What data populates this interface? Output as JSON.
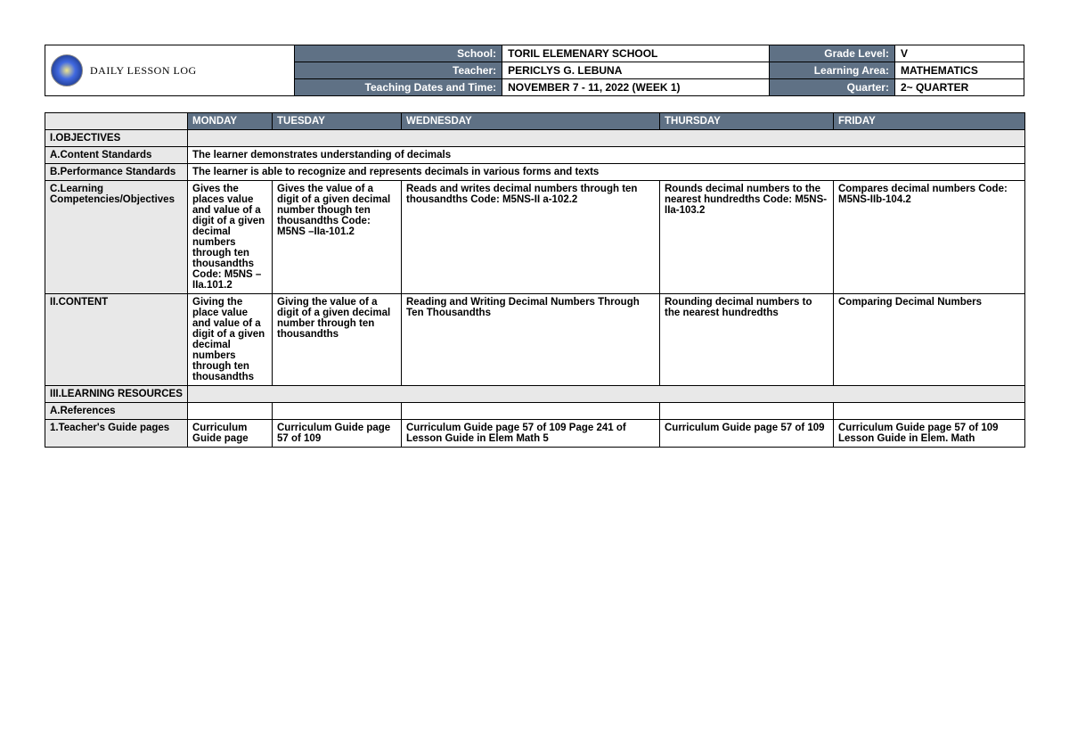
{
  "title": "DAILY LESSON LOG",
  "header": {
    "labels": {
      "school": "School:",
      "teacher": "Teacher:",
      "dates": "Teaching Dates and Time:",
      "grade": "Grade Level:",
      "area": "Learning Area:",
      "quarter": "Quarter:"
    },
    "values": {
      "school": "TORIL ELEMENARY SCHOOL",
      "teacher": "PERICLYS G. LEBUNA",
      "dates": "NOVEMBER 7 - 11, 2022 (WEEK 1)",
      "grade": "V",
      "area": "MATHEMATICS",
      "quarter": "2~ QUARTER"
    }
  },
  "days": {
    "mon": "MONDAY",
    "tue": "TUESDAY",
    "wed": "WEDNESDAY",
    "thu": "THURSDAY",
    "fri": "FRIDAY"
  },
  "rows": {
    "objectives": "I.OBJECTIVES",
    "contentStd": {
      "label": "A.Content Standards",
      "value": "The learner demonstrates understanding of decimals"
    },
    "perfStd": {
      "label": "B.Performance Standards",
      "value": "The learner is able to recognize and represents decimals in various forms and texts"
    },
    "competencies": {
      "label": "C.Learning Competencies/Objectives",
      "mon": "Gives the places value and value of a digit of a given decimal numbers through ten thousandths Code: M5NS – IIa.101.2",
      "tue": "Gives the value of a digit of a given decimal number though ten thousandths Code: M5NS –IIa-101.2",
      "wed": "Reads and writes decimal numbers through ten thousandths Code: M5NS-II a-102.2",
      "thu": "Rounds decimal numbers to the nearest hundredths Code: M5NS-IIa-103.2",
      "fri": "Compares decimal numbers Code: M5NS-IIb-104.2"
    },
    "content": {
      "label": "II.CONTENT",
      "mon": "Giving the place value and value of a digit of a given decimal numbers through ten thousandths",
      "tue": "Giving the value of a digit of a given decimal number through ten thousandths",
      "wed": "Reading and Writing Decimal Numbers Through Ten Thousandths",
      "thu": "Rounding decimal numbers to the nearest hundredths",
      "fri": "Comparing Decimal Numbers"
    },
    "resources": "III.LEARNING RESOURCES",
    "references": "A.References",
    "teachersGuide": {
      "label": "1.Teacher's Guide pages",
      "mon": "Curriculum Guide page",
      "tue": "Curriculum Guide page 57 of 109",
      "wed": "Curriculum Guide page 57 of 109 Page 241 of Lesson Guide in Elem Math 5",
      "thu": "Curriculum Guide page 57 of 109",
      "fri": "Curriculum Guide page 57 of 109 Lesson Guide in Elem. Math"
    }
  },
  "colors": {
    "headerBg": "#5f7185",
    "headerText": "#ffffff",
    "labelBg": "#e8e8e8",
    "border": "#000000",
    "pageBg": "#ffffff"
  }
}
